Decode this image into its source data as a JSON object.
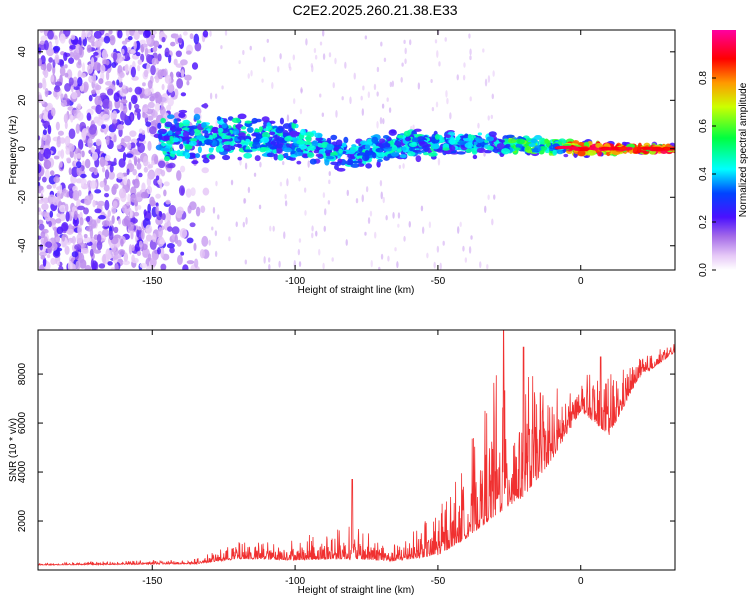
{
  "title": "C2E2.2025.260.21.38.E33",
  "colors": {
    "snr_line": "#f03030",
    "frame": "#000000"
  },
  "chart_data": [
    {
      "type": "heatmap",
      "title": "C2E2.2025.260.21.38.E33",
      "xlabel": "Height of straight line (km)",
      "ylabel": "Frequency (Hz)",
      "xlim": [
        -190,
        33
      ],
      "ylim": [
        -50,
        49
      ],
      "xticks": [
        -150,
        -100,
        -50,
        0
      ],
      "yticks": [
        -40,
        -20,
        0,
        20,
        40
      ],
      "colorbar": {
        "label": "Normalized spectral amplitude",
        "range": [
          0,
          1
        ],
        "ticks": [
          0.0,
          0.2,
          0.4,
          0.6,
          0.8
        ],
        "tick_labels": [
          "0.0",
          "0.2",
          "0.4",
          "0.6",
          "0.8"
        ],
        "colormap": [
          "#ffffff",
          "#c78cf2",
          "#6a1aff",
          "#0000ff",
          "#00ffff",
          "#00ff00",
          "#ffff00",
          "#ff8000",
          "#ff0000",
          "#ff00a0"
        ]
      },
      "band_center": [
        {
          "x": -145,
          "y": 4
        },
        {
          "x": -120,
          "y": 5
        },
        {
          "x": -100,
          "y": 3
        },
        {
          "x": -80,
          "y": -2
        },
        {
          "x": -60,
          "y": 2
        },
        {
          "x": -40,
          "y": 2
        },
        {
          "x": -20,
          "y": 2
        },
        {
          "x": 0,
          "y": 0
        },
        {
          "x": 33,
          "y": 0
        }
      ],
      "noise_region_x": [
        -190,
        -130
      ]
    },
    {
      "type": "line",
      "xlabel": "Height of straight line (km)",
      "ylabel": "SNR (10 * v/v)",
      "xlim": [
        -190,
        33
      ],
      "ylim": [
        0,
        9800
      ],
      "xticks": [
        -150,
        -100,
        -50,
        0
      ],
      "yticks": [
        2000,
        4000,
        6000,
        8000
      ],
      "series": [
        {
          "name": "SNR",
          "envelope": [
            {
              "x": -190,
              "base": 200,
              "spread": 80
            },
            {
              "x": -135,
              "base": 250,
              "spread": 200
            },
            {
              "x": -120,
              "base": 450,
              "spread": 700
            },
            {
              "x": -100,
              "base": 400,
              "spread": 900
            },
            {
              "x": -80,
              "base": 450,
              "spread": 1400
            },
            {
              "x": -65,
              "base": 350,
              "spread": 700
            },
            {
              "x": -50,
              "base": 600,
              "spread": 1800
            },
            {
              "x": -40,
              "base": 1300,
              "spread": 3500
            },
            {
              "x": -30,
              "base": 2200,
              "spread": 6000
            },
            {
              "x": -20,
              "base": 3000,
              "spread": 5500
            },
            {
              "x": -10,
              "base": 4500,
              "spread": 3000
            },
            {
              "x": 0,
              "base": 6500,
              "spread": 1500
            },
            {
              "x": 10,
              "base": 5500,
              "spread": 2500
            },
            {
              "x": 20,
              "base": 7800,
              "spread": 800
            },
            {
              "x": 33,
              "base": 8900,
              "spread": 400
            }
          ],
          "peaks": [
            {
              "x": -80,
              "y": 3700
            },
            {
              "x": -27,
              "y": 9800
            },
            {
              "x": -20,
              "y": 9100
            },
            {
              "x": 7,
              "y": 8700
            }
          ]
        }
      ]
    }
  ]
}
